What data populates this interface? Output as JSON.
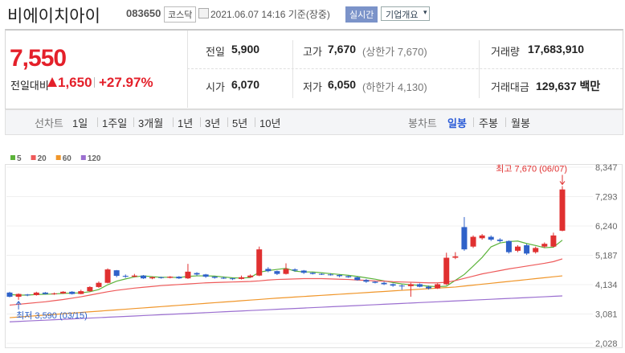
{
  "header": {
    "name": "비에이치아이",
    "code": "083650",
    "market": "코스닥",
    "time": "2021.06.07 14:16 기준(장중)",
    "realtime": "실시간",
    "company": "기업개요"
  },
  "price": {
    "current": "7,550",
    "change_label": "전일대비",
    "change": "1,650",
    "rate": "+27.97%"
  },
  "stats": {
    "prev": {
      "label": "전일",
      "value": "5,900"
    },
    "high": {
      "label": "고가",
      "value": "7,670",
      "note": "(상한가 7,670)"
    },
    "volume": {
      "label": "거래량",
      "value": "17,683,910"
    },
    "open": {
      "label": "시가",
      "value": "6,070"
    },
    "low": {
      "label": "저가",
      "value": "6,050",
      "note": "(하한가 4,130)"
    },
    "amount": {
      "label": "거래대금",
      "value": "129,637 백만"
    }
  },
  "tabs": {
    "line_label": "선차트",
    "line": [
      "1일",
      "1주일",
      "3개월",
      "1년",
      "3년",
      "5년",
      "10년"
    ],
    "candle_label": "봉차트",
    "candle": [
      "일봉",
      "주봉",
      "월봉"
    ]
  },
  "chart_data": {
    "type": "candlestick",
    "candles": {
      "up_color": "#e03030",
      "down_color": "#2f62c9",
      "open": [
        3850,
        3700,
        3780,
        3760,
        3850,
        3800,
        3820,
        3880,
        3800,
        3900,
        4050,
        4200,
        4650,
        4450,
        4420,
        4460,
        4360,
        4400,
        4380,
        4420,
        4360,
        4550,
        4500,
        4420,
        4380,
        4360,
        4340,
        4400,
        4460,
        4700,
        4620,
        4520,
        4680,
        4640,
        4560,
        4520,
        4500,
        4480,
        4440,
        4400,
        4300,
        4240,
        4200,
        4150,
        4100,
        4080,
        4150,
        4060,
        4000,
        4150,
        5100,
        6200,
        5500,
        5800,
        5850,
        5750,
        5700,
        5350,
        5550,
        5300,
        5500,
        5500,
        6070
      ],
      "high": [
        3880,
        3820,
        3800,
        3880,
        3870,
        3850,
        3900,
        3900,
        3950,
        4080,
        4250,
        4720,
        4660,
        4500,
        4520,
        4480,
        4430,
        4420,
        4440,
        4440,
        4880,
        4580,
        4520,
        4440,
        4420,
        4380,
        4460,
        4500,
        5500,
        4760,
        4640,
        4900,
        4720,
        4660,
        4580,
        4540,
        4540,
        4500,
        4460,
        4420,
        4340,
        4260,
        4240,
        4180,
        4140,
        4200,
        4180,
        4100,
        4180,
        5280,
        5300,
        6560,
        5900,
        5950,
        5900,
        5800,
        5720,
        5550,
        5600,
        5500,
        5650,
        6000,
        7670
      ],
      "low": [
        3680,
        3590,
        3720,
        3740,
        3780,
        3770,
        3800,
        3780,
        3790,
        3880,
        4020,
        4180,
        4400,
        4380,
        4400,
        4340,
        4330,
        4350,
        4360,
        4340,
        4340,
        4460,
        4380,
        4350,
        4340,
        4300,
        4320,
        4380,
        4440,
        4580,
        4480,
        4500,
        4600,
        4520,
        4500,
        4480,
        4460,
        4400,
        4380,
        4280,
        4200,
        4180,
        4120,
        4060,
        3950,
        3700,
        4040,
        3960,
        3980,
        4120,
        5050,
        5350,
        5450,
        5750,
        5700,
        5650,
        5250,
        5300,
        5200,
        5250,
        5450,
        5480,
        6050
      ],
      "close": [
        3700,
        3800,
        3760,
        3850,
        3800,
        3820,
        3880,
        3800,
        3900,
        4050,
        4200,
        4680,
        4450,
        4420,
        4460,
        4360,
        4400,
        4380,
        4420,
        4360,
        4600,
        4500,
        4420,
        4380,
        4360,
        4340,
        4400,
        4460,
        5400,
        4620,
        4520,
        4700,
        4640,
        4560,
        4520,
        4500,
        4480,
        4440,
        4400,
        4300,
        4240,
        4200,
        4150,
        4100,
        4080,
        4150,
        4060,
        4000,
        4150,
        5100,
        5150,
        5400,
        5850,
        5900,
        5750,
        5700,
        5300,
        5500,
        5250,
        5450,
        5600,
        5900,
        7550
      ]
    },
    "series": [
      {
        "name": "5",
        "color": "#5cb33a",
        "values": [
          3780,
          3760,
          3760,
          3780,
          3790,
          3800,
          3820,
          3830,
          3840,
          3880,
          3960,
          4130,
          4260,
          4340,
          4410,
          4450,
          4420,
          4400,
          4400,
          4390,
          4430,
          4450,
          4450,
          4440,
          4410,
          4380,
          4370,
          4390,
          4580,
          4640,
          4680,
          4720,
          4620,
          4590,
          4590,
          4560,
          4530,
          4500,
          4470,
          4430,
          4380,
          4330,
          4270,
          4210,
          4160,
          4130,
          4110,
          4080,
          4060,
          4080,
          4290,
          4500,
          4800,
          5110,
          5490,
          5630,
          5680,
          5700,
          5610,
          5540,
          5460,
          5480,
          5730
        ]
      },
      {
        "name": "20",
        "color": "#ee5a5a",
        "values": [
          3400,
          3430,
          3460,
          3490,
          3520,
          3560,
          3600,
          3650,
          3700,
          3760,
          3820,
          3880,
          3930,
          3970,
          4010,
          4040,
          4070,
          4100,
          4120,
          4140,
          4160,
          4180,
          4200,
          4210,
          4220,
          4230,
          4240,
          4250,
          4270,
          4300,
          4320,
          4330,
          4340,
          4350,
          4350,
          4350,
          4340,
          4330,
          4320,
          4300,
          4290,
          4270,
          4260,
          4240,
          4230,
          4220,
          4210,
          4200,
          4200,
          4220,
          4280,
          4360,
          4440,
          4520,
          4580,
          4640,
          4700,
          4750,
          4800,
          4850,
          4900,
          4960,
          5060
        ]
      },
      {
        "name": "60",
        "color": "#f0962a",
        "values": [
          2950,
          2973,
          2997,
          3020,
          3043,
          3067,
          3090,
          3113,
          3137,
          3160,
          3183,
          3207,
          3230,
          3253,
          3277,
          3300,
          3323,
          3347,
          3370,
          3393,
          3417,
          3440,
          3463,
          3487,
          3510,
          3533,
          3557,
          3580,
          3603,
          3627,
          3650,
          3670,
          3690,
          3710,
          3730,
          3750,
          3770,
          3790,
          3810,
          3830,
          3850,
          3870,
          3890,
          3910,
          3930,
          3950,
          3970,
          3990,
          4010,
          4030,
          4050,
          4083,
          4117,
          4150,
          4183,
          4217,
          4250,
          4283,
          4317,
          4350,
          4383,
          4417,
          4450
        ]
      },
      {
        "name": "120",
        "color": "#9b6fd0",
        "values": [
          2800,
          2815,
          2830,
          2845,
          2860,
          2875,
          2890,
          2905,
          2920,
          2935,
          2950,
          2965,
          2980,
          2995,
          3010,
          3025,
          3040,
          3055,
          3070,
          3085,
          3100,
          3115,
          3130,
          3145,
          3160,
          3175,
          3190,
          3205,
          3220,
          3235,
          3250,
          3265,
          3280,
          3295,
          3310,
          3325,
          3340,
          3355,
          3370,
          3385,
          3400,
          3415,
          3430,
          3445,
          3460,
          3475,
          3490,
          3505,
          3520,
          3535,
          3550,
          3565,
          3580,
          3595,
          3610,
          3625,
          3640,
          3655,
          3670,
          3685,
          3700,
          3715,
          3730
        ]
      }
    ],
    "annotations": {
      "high": "최고 7,670 (06/07)",
      "low": "최저 3,590 (03/15)"
    },
    "ylim": [
      2028,
      8347
    ],
    "yticks": [
      {
        "value": 8347,
        "label": "8,347"
      },
      {
        "value": 7293,
        "label": "7,293"
      },
      {
        "value": 6240,
        "label": "6,240"
      },
      {
        "value": 5187,
        "label": "5,187"
      },
      {
        "value": 4134,
        "label": "4,134"
      },
      {
        "value": 3081,
        "label": "3,081"
      },
      {
        "value": 2028,
        "label": "2,028"
      }
    ],
    "grid": true
  }
}
